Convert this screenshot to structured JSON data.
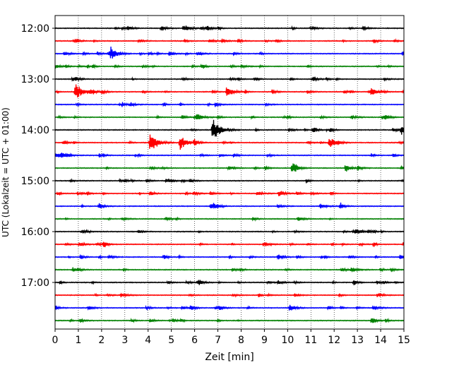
{
  "chart_data": {
    "type": "line",
    "title": "",
    "xlabel": "Zeit  [min]",
    "ylabel": "UTC (Lokalzeit = UTC + 01:00)",
    "xlim": [
      0,
      15
    ],
    "x_ticks": [
      "0",
      "1",
      "2",
      "3",
      "4",
      "5",
      "6",
      "7",
      "8",
      "9",
      "10",
      "11",
      "12",
      "13",
      "14",
      "15"
    ],
    "y_tick_labels": [
      "12:00",
      "13:00",
      "14:00",
      "15:00",
      "16:00",
      "17:00"
    ],
    "trace_start": "12:00",
    "trace_interval_min": 15,
    "trace_count": 24,
    "trace_colors": [
      "#000000",
      "#ff0000",
      "#0000ff",
      "#008000"
    ],
    "grid": {
      "vertical_dotted": true
    },
    "events": [
      {
        "trace": 2,
        "x": 2.4,
        "amp": 1.0
      },
      {
        "trace": 5,
        "x": 0.9,
        "amp": 1.4
      },
      {
        "trace": 5,
        "x": 7.4,
        "amp": 0.9
      },
      {
        "trace": 5,
        "x": 13.6,
        "amp": 0.7
      },
      {
        "trace": 7,
        "x": 6.1,
        "amp": 0.7
      },
      {
        "trace": 8,
        "x": 6.8,
        "amp": 1.7
      },
      {
        "trace": 8,
        "x": 14.9,
        "amp": 0.6
      },
      {
        "trace": 9,
        "x": 4.1,
        "amp": 1.4
      },
      {
        "trace": 9,
        "x": 5.4,
        "amp": 1.2
      },
      {
        "trace": 9,
        "x": 11.8,
        "amp": 0.8
      },
      {
        "trace": 11,
        "x": 10.2,
        "amp": 0.8
      },
      {
        "trace": 11,
        "x": 12.5,
        "amp": 0.6
      },
      {
        "trace": 14,
        "x": 1.9,
        "amp": 0.5
      },
      {
        "trace": 14,
        "x": 6.7,
        "amp": 0.5
      },
      {
        "trace": 18,
        "x": 9.6,
        "amp": 0.5
      },
      {
        "trace": 22,
        "x": 10.1,
        "amp": 0.6
      }
    ]
  }
}
